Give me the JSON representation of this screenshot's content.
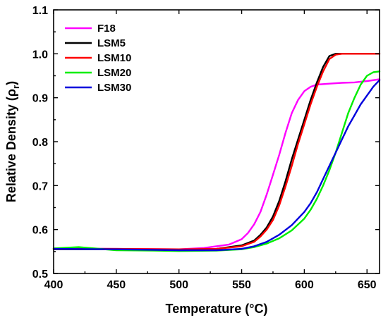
{
  "chart_data": {
    "type": "line",
    "xlabel": "Temperature (°C)",
    "ylabel": "Relative Density (ρ",
    "ylabel_sub": "r",
    "ylabel_close": ")",
    "xlim": [
      400,
      660
    ],
    "ylim": [
      0.5,
      1.1
    ],
    "xticks": [
      400,
      450,
      500,
      550,
      600,
      650
    ],
    "yticks": [
      0.5,
      0.6,
      0.7,
      0.8,
      0.9,
      1.0,
      1.1
    ],
    "ytick_labels": [
      "0.5",
      "0.6",
      "0.7",
      "0.8",
      "0.9",
      "1.0",
      "1.1"
    ],
    "grid": false,
    "legend_position": "top-left",
    "series": [
      {
        "name": "F18",
        "color": "#ff00ff",
        "x": [
          400,
          450,
          500,
          520,
          540,
          550,
          555,
          560,
          565,
          570,
          575,
          580,
          585,
          590,
          595,
          600,
          605,
          610,
          620,
          630,
          640,
          650,
          660
        ],
        "y": [
          0.557,
          0.556,
          0.555,
          0.558,
          0.566,
          0.578,
          0.592,
          0.612,
          0.64,
          0.68,
          0.725,
          0.77,
          0.82,
          0.865,
          0.895,
          0.915,
          0.925,
          0.93,
          0.932,
          0.934,
          0.935,
          0.938,
          0.942
        ]
      },
      {
        "name": "LSM5",
        "color": "#000000",
        "x": [
          400,
          450,
          500,
          530,
          550,
          560,
          565,
          570,
          575,
          580,
          585,
          590,
          595,
          600,
          605,
          610,
          615,
          620,
          625,
          630,
          640,
          650,
          660
        ],
        "y": [
          0.555,
          0.555,
          0.554,
          0.556,
          0.564,
          0.575,
          0.588,
          0.605,
          0.63,
          0.665,
          0.71,
          0.76,
          0.805,
          0.85,
          0.895,
          0.935,
          0.97,
          0.995,
          1.0,
          1.0,
          1.0,
          1.0,
          1.0
        ]
      },
      {
        "name": "LSM10",
        "color": "#ff0000",
        "x": [
          400,
          450,
          500,
          530,
          550,
          560,
          565,
          570,
          575,
          580,
          585,
          590,
          595,
          600,
          605,
          610,
          615,
          620,
          625,
          630,
          640,
          650,
          660
        ],
        "y": [
          0.556,
          0.556,
          0.555,
          0.556,
          0.562,
          0.572,
          0.584,
          0.6,
          0.622,
          0.655,
          0.698,
          0.745,
          0.795,
          0.84,
          0.885,
          0.925,
          0.96,
          0.988,
          0.998,
          1.0,
          1.0,
          1.0,
          1.0
        ]
      },
      {
        "name": "LSM20",
        "color": "#00ee00",
        "x": [
          400,
          420,
          450,
          480,
          500,
          530,
          550,
          560,
          570,
          580,
          590,
          600,
          605,
          610,
          615,
          620,
          625,
          630,
          635,
          640,
          645,
          650,
          655,
          660
        ],
        "y": [
          0.557,
          0.56,
          0.553,
          0.552,
          0.551,
          0.552,
          0.555,
          0.56,
          0.568,
          0.58,
          0.598,
          0.625,
          0.645,
          0.67,
          0.7,
          0.735,
          0.775,
          0.82,
          0.865,
          0.9,
          0.93,
          0.95,
          0.958,
          0.96
        ]
      },
      {
        "name": "LSM30",
        "color": "#0000dd",
        "x": [
          400,
          450,
          500,
          530,
          550,
          560,
          570,
          580,
          590,
          600,
          605,
          610,
          615,
          620,
          625,
          630,
          635,
          640,
          645,
          650,
          655,
          660
        ],
        "y": [
          0.556,
          0.555,
          0.553,
          0.553,
          0.556,
          0.562,
          0.572,
          0.588,
          0.61,
          0.64,
          0.66,
          0.685,
          0.715,
          0.745,
          0.775,
          0.805,
          0.835,
          0.86,
          0.885,
          0.905,
          0.925,
          0.94
        ]
      }
    ]
  }
}
